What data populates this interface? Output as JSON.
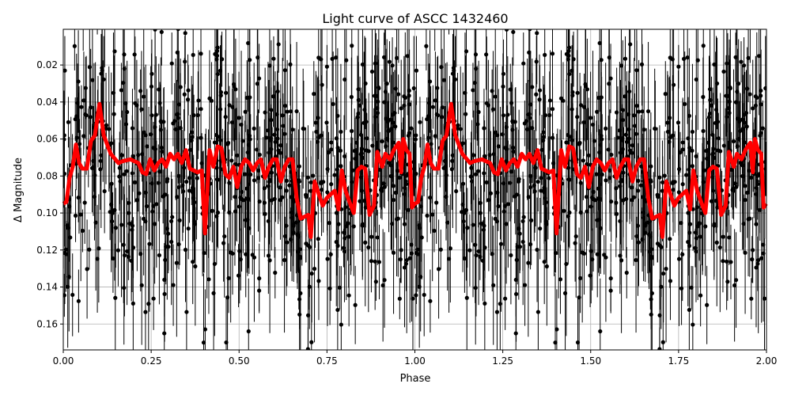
{
  "chart_data": {
    "type": "scatter",
    "title": "Light curve of ASCC 1432460",
    "xlabel": "Phase",
    "ylabel": "Δ Magnitude",
    "xlim": [
      0.0,
      2.0
    ],
    "ylim": [
      0.174,
      0.0007
    ],
    "y_inverted": true,
    "grid": true,
    "x_ticks": [
      "0.00",
      "0.25",
      "0.50",
      "0.75",
      "1.00",
      "1.25",
      "1.50",
      "1.75",
      "2.00"
    ],
    "y_ticks": [
      "0.02",
      "0.04",
      "0.06",
      "0.08",
      "0.10",
      "0.12",
      "0.14",
      "0.16"
    ],
    "colors": {
      "points": "#000000",
      "binned": "#ff0000",
      "grid": "#b0b0b0"
    },
    "series": [
      {
        "name": "observations",
        "style": "black points with vertical error bars",
        "note": "dense scatter spanning roughly 0.0–0.174 Δ mag across all phases"
      },
      {
        "name": "binned mean",
        "style": "thick red line, repeated for phase 1–2",
        "phase": [
          0.0,
          0.009,
          0.018,
          0.027,
          0.036,
          0.045,
          0.054,
          0.067,
          0.079,
          0.09,
          0.103,
          0.115,
          0.135,
          0.157,
          0.169,
          0.191,
          0.214,
          0.225,
          0.236,
          0.247,
          0.259,
          0.27,
          0.281,
          0.292,
          0.304,
          0.315,
          0.326,
          0.337,
          0.349,
          0.36,
          0.371,
          0.382,
          0.394,
          0.403,
          0.416,
          0.427,
          0.439,
          0.45,
          0.461,
          0.472,
          0.484,
          0.495,
          0.506,
          0.517,
          0.529,
          0.54,
          0.551,
          0.562,
          0.574,
          0.585,
          0.596,
          0.607,
          0.619,
          0.63,
          0.641,
          0.652,
          0.664,
          0.675,
          0.697,
          0.704,
          0.715,
          0.727,
          0.738,
          0.749,
          0.76,
          0.772,
          0.783,
          0.792,
          0.803,
          0.814,
          0.826,
          0.837,
          0.848,
          0.859,
          0.871,
          0.884,
          0.893,
          0.907,
          0.916,
          0.929,
          0.94,
          0.954,
          0.961,
          0.967,
          0.976,
          0.985,
          0.992,
          0.999
        ],
        "mag": [
          0.095,
          0.094,
          0.081,
          0.075,
          0.063,
          0.073,
          0.076,
          0.076,
          0.061,
          0.058,
          0.041,
          0.058,
          0.068,
          0.073,
          0.072,
          0.071,
          0.073,
          0.078,
          0.079,
          0.071,
          0.077,
          0.073,
          0.071,
          0.075,
          0.068,
          0.071,
          0.068,
          0.073,
          0.066,
          0.076,
          0.077,
          0.078,
          0.077,
          0.111,
          0.066,
          0.075,
          0.064,
          0.065,
          0.079,
          0.081,
          0.075,
          0.086,
          0.075,
          0.071,
          0.073,
          0.077,
          0.073,
          0.071,
          0.081,
          0.075,
          0.071,
          0.071,
          0.083,
          0.075,
          0.071,
          0.071,
          0.092,
          0.103,
          0.101,
          0.113,
          0.083,
          0.09,
          0.096,
          0.092,
          0.09,
          0.088,
          0.098,
          0.077,
          0.088,
          0.094,
          0.1,
          0.077,
          0.075,
          0.076,
          0.101,
          0.096,
          0.067,
          0.075,
          0.068,
          0.071,
          0.066,
          0.062,
          0.078,
          0.06,
          0.066,
          0.068,
          0.097,
          0.095
        ]
      }
    ]
  }
}
